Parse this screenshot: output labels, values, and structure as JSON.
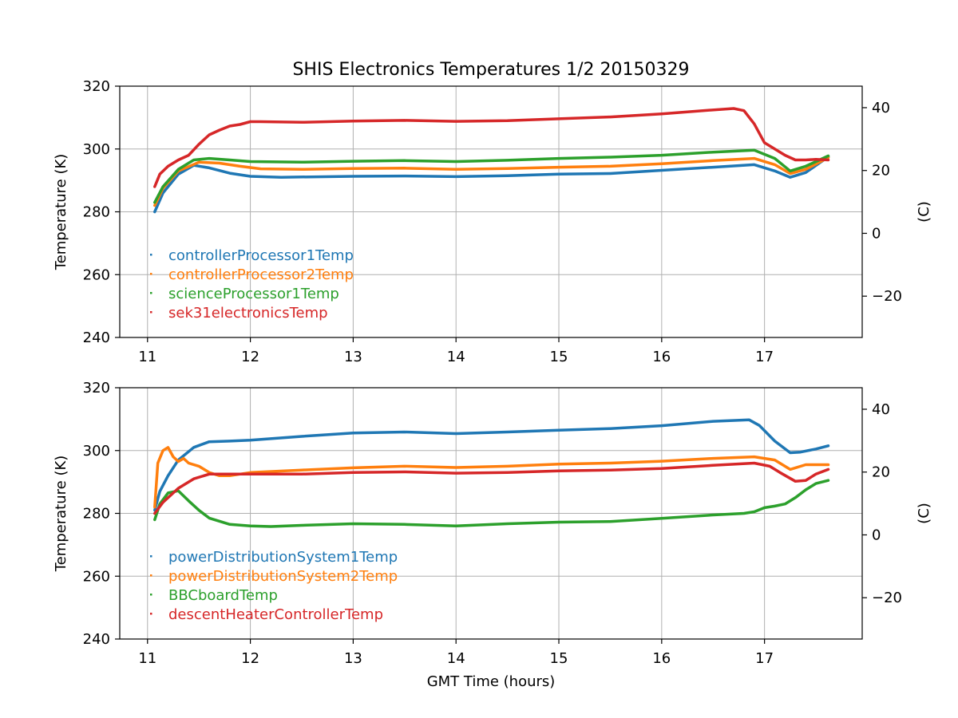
{
  "title": "SHIS Electronics Temperatures 1/2 20150329",
  "xlabel": "GMT Time (hours)",
  "chart_data": [
    {
      "type": "line",
      "ylabel": "Temperature (K)",
      "ylabel_right": "(C)",
      "xlim": [
        10.73,
        17.95
      ],
      "ylim": [
        240,
        320
      ],
      "xticks": [
        11,
        12,
        13,
        14,
        15,
        16,
        17
      ],
      "yticks": [
        240,
        260,
        280,
        300,
        320
      ],
      "yticks_right": [
        40,
        20,
        0,
        -20
      ],
      "legend_loc": "lower-left",
      "series": [
        {
          "name": "controllerProcessor1Temp",
          "color": "#1f77b4",
          "x": [
            11.07,
            11.15,
            11.3,
            11.45,
            11.6,
            11.8,
            12.0,
            12.3,
            13.0,
            13.5,
            14.0,
            14.5,
            15.0,
            15.5,
            16.0,
            16.5,
            16.9,
            17.1,
            17.25,
            17.4,
            17.62
          ],
          "y": [
            280,
            286,
            292,
            294.8,
            294,
            292.3,
            291.3,
            291,
            291.3,
            291.4,
            291.2,
            291.5,
            292,
            292.2,
            293.2,
            294.2,
            295,
            293,
            291,
            292.5,
            297.5
          ]
        },
        {
          "name": "controllerProcessor2Temp",
          "color": "#ff7f0e",
          "x": [
            11.07,
            11.15,
            11.3,
            11.5,
            11.7,
            11.9,
            12.1,
            12.5,
            13.0,
            13.5,
            14.0,
            14.5,
            15.0,
            15.5,
            16.0,
            16.5,
            16.9,
            17.1,
            17.25,
            17.4,
            17.62
          ],
          "y": [
            282,
            287.5,
            293,
            295.8,
            295.5,
            294.5,
            293.7,
            293.5,
            293.8,
            293.9,
            293.5,
            293.8,
            294.2,
            294.5,
            295.3,
            296.3,
            297,
            295,
            292.2,
            293.5,
            297.3
          ]
        },
        {
          "name": "scienceProcessor1Temp",
          "color": "#2ca02c",
          "x": [
            11.07,
            11.15,
            11.3,
            11.45,
            11.6,
            11.8,
            12.0,
            12.5,
            13.0,
            13.5,
            14.0,
            14.5,
            15.0,
            15.5,
            16.0,
            16.5,
            16.9,
            17.1,
            17.25,
            17.4,
            17.62
          ],
          "y": [
            283,
            288,
            293.5,
            296.5,
            297,
            296.5,
            296,
            295.8,
            296.1,
            296.3,
            296,
            296.4,
            297,
            297.4,
            298,
            299,
            299.6,
            297,
            293,
            294.5,
            297.8
          ]
        },
        {
          "name": "sek31electronicsTemp",
          "color": "#d62728",
          "x": [
            11.07,
            11.12,
            11.2,
            11.3,
            11.4,
            11.5,
            11.6,
            11.7,
            11.8,
            11.9,
            12.0,
            12.1,
            12.5,
            13.0,
            13.5,
            14.0,
            14.5,
            15.0,
            15.5,
            16.0,
            16.4,
            16.7,
            16.8,
            16.9,
            17.0,
            17.1,
            17.2,
            17.3,
            17.4,
            17.5,
            17.62
          ],
          "y": [
            288,
            292,
            294.5,
            296.5,
            298,
            301.5,
            304.5,
            306,
            307.3,
            307.8,
            308.7,
            308.7,
            308.5,
            308.9,
            309.1,
            308.8,
            309,
            309.6,
            310.2,
            311.2,
            312.2,
            312.9,
            312.2,
            308,
            302,
            300,
            298,
            296.5,
            296.5,
            296.7,
            296.5
          ]
        }
      ]
    },
    {
      "type": "line",
      "ylabel": "Temperature (K)",
      "ylabel_right": "(C)",
      "xlim": [
        10.73,
        17.95
      ],
      "ylim": [
        240,
        320
      ],
      "xticks": [
        11,
        12,
        13,
        14,
        15,
        16,
        17
      ],
      "yticks": [
        240,
        260,
        280,
        300,
        320
      ],
      "yticks_right": [
        40,
        20,
        0,
        -20
      ],
      "legend_loc": "lower-left",
      "series": [
        {
          "name": "powerDistributionSystem1Temp",
          "color": "#1f77b4",
          "x": [
            11.07,
            11.12,
            11.2,
            11.3,
            11.45,
            11.6,
            11.8,
            12.0,
            12.5,
            13.0,
            13.5,
            14.0,
            14.5,
            15.0,
            15.5,
            16.0,
            16.5,
            16.85,
            16.95,
            17.1,
            17.25,
            17.35,
            17.5,
            17.62
          ],
          "y": [
            281,
            287,
            292,
            297,
            301,
            302.8,
            303,
            303.3,
            304.5,
            305.6,
            305.9,
            305.4,
            305.9,
            306.5,
            307,
            307.9,
            309.3,
            309.8,
            308,
            303,
            299.3,
            299.5,
            300.5,
            301.5
          ]
        },
        {
          "name": "powerDistributionSystem2Temp",
          "color": "#ff7f0e",
          "x": [
            11.07,
            11.1,
            11.15,
            11.2,
            11.25,
            11.3,
            11.35,
            11.4,
            11.5,
            11.6,
            11.7,
            11.8,
            12.0,
            12.5,
            13.0,
            13.5,
            14.0,
            14.5,
            15.0,
            15.5,
            16.0,
            16.5,
            16.9,
            17.1,
            17.25,
            17.4,
            17.5,
            17.62
          ],
          "y": [
            282,
            296,
            300,
            301,
            298,
            296.5,
            297.5,
            296,
            295,
            293,
            292,
            292,
            293,
            293.8,
            294.5,
            295,
            294.6,
            295,
            295.7,
            296,
            296.6,
            297.5,
            298,
            297,
            294,
            295.5,
            295.5,
            295.5
          ]
        },
        {
          "name": "BBCboardTemp",
          "color": "#2ca02c",
          "x": [
            11.07,
            11.12,
            11.2,
            11.3,
            11.4,
            11.5,
            11.6,
            11.8,
            12.0,
            12.2,
            12.5,
            13.0,
            13.5,
            14.0,
            14.5,
            15.0,
            15.5,
            16.0,
            16.5,
            16.8,
            16.9,
            17.0,
            17.1,
            17.2,
            17.3,
            17.4,
            17.5,
            17.62
          ],
          "y": [
            278,
            283,
            286.5,
            287.2,
            284,
            281,
            278.5,
            276.5,
            276,
            275.8,
            276.2,
            276.7,
            276.5,
            276,
            276.7,
            277.2,
            277.4,
            278.4,
            279.5,
            280,
            280.5,
            281.8,
            282.3,
            283,
            285,
            287.5,
            289.5,
            290.5
          ]
        },
        {
          "name": "descentHeaterControllerTemp",
          "color": "#d62728",
          "x": [
            11.07,
            11.15,
            11.3,
            11.45,
            11.6,
            11.8,
            12.0,
            12.5,
            13.0,
            13.5,
            14.0,
            14.5,
            15.0,
            15.5,
            16.0,
            16.5,
            16.9,
            17.05,
            17.15,
            17.3,
            17.4,
            17.5,
            17.62
          ],
          "y": [
            280,
            283.5,
            288,
            291,
            292.5,
            292.5,
            292.5,
            292.5,
            293,
            293.2,
            292.8,
            293,
            293.5,
            293.8,
            294.3,
            295.3,
            296,
            295,
            293,
            290.2,
            290.5,
            292.5,
            294
          ]
        }
      ]
    }
  ]
}
